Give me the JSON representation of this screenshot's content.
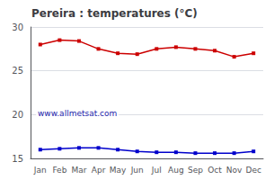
{
  "chart_data": {
    "type": "line",
    "title": "Pereira : temperatures (°C)",
    "categories": [
      "Jan",
      "Feb",
      "Mar",
      "Apr",
      "May",
      "Jun",
      "Jul",
      "Aug",
      "Sep",
      "Oct",
      "Nov",
      "Dec"
    ],
    "series": [
      {
        "color": "#cc0000",
        "marker": "square",
        "values": [
          28.0,
          28.5,
          28.4,
          27.5,
          27.0,
          26.9,
          27.5,
          27.7,
          27.5,
          27.3,
          26.6,
          27.0
        ]
      },
      {
        "color": "#0000cc",
        "marker": "square",
        "values": [
          16.0,
          16.1,
          16.2,
          16.2,
          16.0,
          15.8,
          15.7,
          15.7,
          15.6,
          15.6,
          15.6,
          15.8
        ]
      }
    ],
    "ylim": [
      15,
      30
    ],
    "yticks": [
      15,
      20,
      25,
      30
    ],
    "grid": true,
    "annotations": [
      "www.allmetsat.com"
    ]
  }
}
